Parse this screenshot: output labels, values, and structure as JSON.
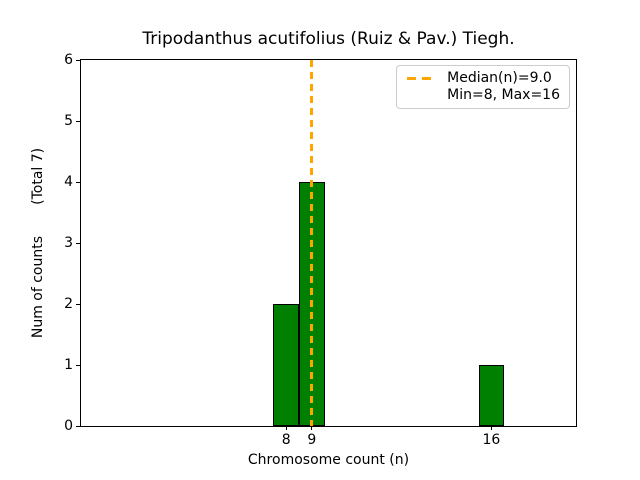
{
  "figure": {
    "title": "Tripodanthus acutifolius (Ruiz & Pav.) Tiegh.",
    "xlabel": "Chromosome count (n)",
    "ylabel": "Num of counts       (Total 7)"
  },
  "legend": {
    "line1": "Median(n)=9.0",
    "line2": "Min=8, Max=16"
  },
  "colors": {
    "bar_fill": "#008000",
    "bar_edge": "#000000",
    "median_line": "#FFA500",
    "axis": "#000000",
    "legend_border": "#cccccc"
  },
  "chart_data": {
    "type": "bar",
    "title": "Tripodanthus acutifolius (Ruiz & Pav.) Tiegh.",
    "xlabel": "Chromosome count (n)",
    "ylabel": "Num of counts",
    "ylabel_note": "(Total 7)",
    "x": [
      8,
      9,
      16
    ],
    "values": [
      2,
      4,
      1
    ],
    "bar_width": 1,
    "total_counts": 7,
    "median": 9.0,
    "min": 8,
    "max": 16,
    "xlim": [
      0,
      19.3
    ],
    "ylim": [
      0,
      6
    ],
    "xticks": [
      8,
      9,
      16
    ],
    "yticks": [
      0,
      1,
      2,
      3,
      4,
      5,
      6
    ],
    "legend_entries": [
      "Median(n)=9.0",
      "Min=8, Max=16"
    ],
    "legend_position": "upper right",
    "grid": false
  }
}
